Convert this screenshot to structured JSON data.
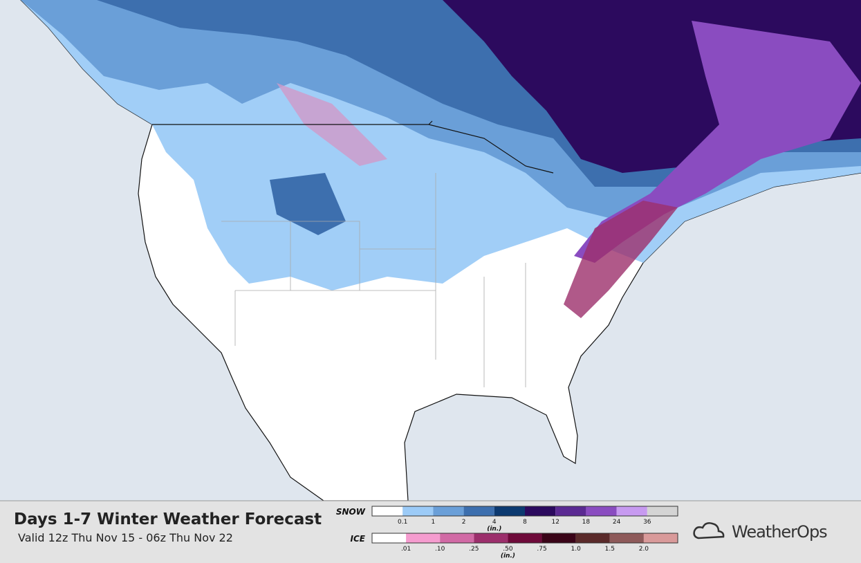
{
  "header": {
    "title": "Days 1-7 Winter Weather Forecast",
    "subtitle": "Valid 12z Thu Nov 15 - 06z Thu Nov 22"
  },
  "legend": {
    "snow": {
      "label": "SNOW",
      "unit": "(in.)",
      "colors": [
        "#ffffff",
        "#9ccbf7",
        "#6a9fd8",
        "#3d6fae",
        "#0d3a70",
        "#2c0a5e",
        "#5b2a92",
        "#8a4cc0",
        "#c79af0",
        "#d4d4d4"
      ],
      "ticks": [
        "0.1",
        "1",
        "2",
        "4",
        "8",
        "12",
        "18",
        "24",
        "36"
      ]
    },
    "ice": {
      "label": "ICE",
      "unit": "(in.)",
      "colors": [
        "#ffffff",
        "#f59ccf",
        "#d16aa5",
        "#9c2f6c",
        "#6e0a3a",
        "#3a0418",
        "#5a2a2a",
        "#8e5a5a",
        "#d99a9a"
      ],
      "ticks": [
        ".01",
        ".10",
        ".25",
        ".50",
        ".75",
        "1.0",
        "1.5",
        "2.0"
      ]
    }
  },
  "brand": "WeatherOps"
}
